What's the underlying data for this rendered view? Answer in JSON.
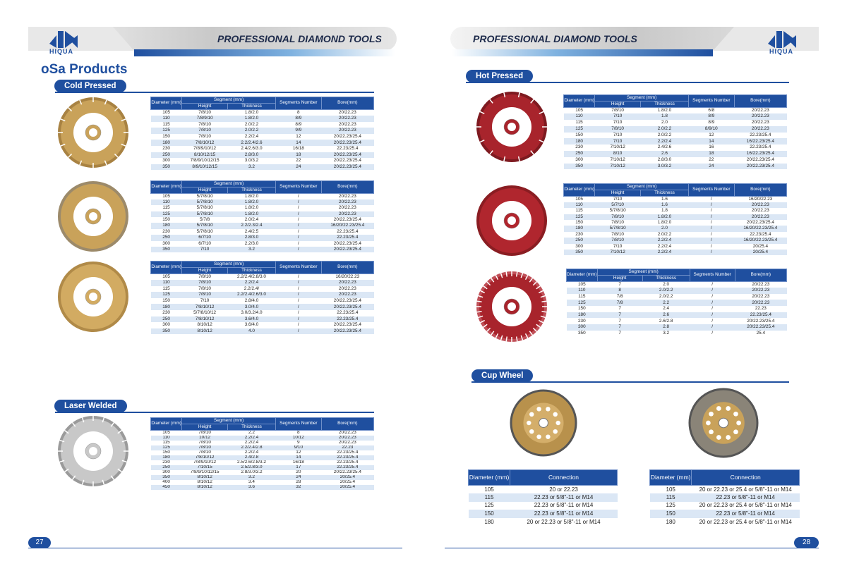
{
  "left_page": {
    "header_title": "PROFESSIONAL DIAMOND TOOLS",
    "logo_text": "HIQUA",
    "heading": "oSa Products",
    "cold_pressed": {
      "label": "Cold Pressed",
      "tables": [
        {
          "header": {
            "diameter": "Diameter (mm)",
            "segment": "Segment (mm)",
            "height": "Height",
            "thickness": "Thickness",
            "segments": "Segments Number",
            "bore": "Bore(mm)"
          },
          "rows": [
            [
              "105",
              "7/8/10",
              "1.8/2.0",
              "8",
              "20/22.23"
            ],
            [
              "110",
              "7/8/9/10",
              "1.8/2.0",
              "8/9",
              "20/22.23"
            ],
            [
              "115",
              "7/8/10",
              "2.0/2.2",
              "8/9",
              "20/22.23"
            ],
            [
              "125",
              "7/8/10",
              "2.0/2.2",
              "9/9",
              "20/22.23"
            ],
            [
              "150",
              "7/8/10",
              "2.2/2.4",
              "12",
              "20/22.23/25.4"
            ],
            [
              "180",
              "7/8/10/12",
              "2.2/2.4/2.6",
              "14",
              "20/22.23/25.4"
            ],
            [
              "230",
              "7/8/9/10/12",
              "2.4/2.6/3.0",
              "16/18",
              "22.23/25.4"
            ],
            [
              "250",
              "8/10/12/15",
              "2.8/3.0",
              "18",
              "20/22.23/25.4"
            ],
            [
              "300",
              "7/8/9/10/12/15",
              "3.0/3.2",
              "22",
              "20/22.23/25.4"
            ],
            [
              "350",
              "8/9/10/12/15",
              "3.2",
              "24",
              "20/22.23/25.4"
            ]
          ]
        },
        {
          "header": {
            "diameter": "Diameter (mm)",
            "segment": "Segment (mm)",
            "height": "Height",
            "thickness": "Thickness",
            "segments": "Segments Number",
            "bore": "Bore(mm)"
          },
          "rows": [
            [
              "105",
              "5/7/8/10",
              "1.8/2.0",
              "/",
              "20/22.23"
            ],
            [
              "110",
              "5/7/8/10",
              "1.8/2.0",
              "/",
              "20/22.23"
            ],
            [
              "115",
              "5/7/8/10",
              "1.8/2.0",
              "/",
              "20/22.23"
            ],
            [
              "125",
              "5/7/8/10",
              "1.8/2.0",
              "/",
              "20/22.23"
            ],
            [
              "150",
              "5/7/8",
              "2.0/2.4",
              "/",
              "20/22.23/25.4"
            ],
            [
              "180",
              "5/7/8/10",
              "2.2/2.3/2.4",
              "/",
              "16/20/22.23/25.4"
            ],
            [
              "230",
              "5/7/8/10",
              "2.4/2.5",
              "/",
              "22.23/25.4"
            ],
            [
              "250",
              "6/7/10",
              "2.8/3.0",
              "/",
              "22.23/25.4"
            ],
            [
              "300",
              "6/7/10",
              "2.2/3.0",
              "/",
              "20/22.23/25.4"
            ],
            [
              "350",
              "7/10",
              "3.2",
              "/",
              "20/22.23/25.4"
            ]
          ]
        },
        {
          "header": {
            "diameter": "Diameter (mm)",
            "segment": "Segment (mm)",
            "height": "Height",
            "thickness": "Thickness",
            "segments": "Segments Number",
            "bore": "Bore(mm)"
          },
          "rows": [
            [
              "105",
              "7/8/10",
              "2.2/2.4/2.8/3.0",
              "/",
              "16/20/22.23"
            ],
            [
              "110",
              "7/8/10",
              "2.2/2.4",
              "/",
              "20/22.23"
            ],
            [
              "115",
              "7/8/10",
              "2.2/2.4/",
              "/",
              "20/22.23"
            ],
            [
              "125",
              "7/8/10",
              "2.2/2.4/2.6/3.0",
              "/",
              "20/22.23"
            ],
            [
              "150",
              "7/10",
              "2.8/4.0",
              "/",
              "20/22.23/25.4"
            ],
            [
              "180",
              "7/8/10/12",
              "3.0/4.0",
              "/",
              "20/22.23/25.4"
            ],
            [
              "230",
              "5/7/8/10/12",
              "3.0/3.2/4.0",
              "/",
              "22.23/25.4"
            ],
            [
              "250",
              "7/8/10/12",
              "3.6/4.0",
              "/",
              "22.23/25.4"
            ],
            [
              "300",
              "8/10/12",
              "3.6/4.0",
              "/",
              "20/22.23/25.4"
            ],
            [
              "350",
              "8/10/12",
              "4.0",
              "/",
              "20/22.23/25.4"
            ]
          ]
        }
      ]
    },
    "laser_welded": {
      "label": "Laser Welded",
      "tables": [
        {
          "header": {
            "diameter": "Diameter (mm)",
            "segment": "Segment (mm)",
            "height": "Height",
            "thickness": "Thickness",
            "segments": "Segments Number",
            "bore": "Bore(mm)"
          },
          "rows": [
            [
              "105",
              "7/8/10",
              "2.2",
              "8",
              "20/22.23"
            ],
            [
              "110",
              "10/12",
              "2.2/2.4",
              "10/12",
              "20/22.23"
            ],
            [
              "115",
              "7/8/10",
              "2.2/2.4",
              "9",
              "20/22.23"
            ],
            [
              "125",
              "7/8/10",
              "2.2/2.4/2.8",
              "9/10",
              "22.23"
            ],
            [
              "150",
              "7/8/10",
              "2.2/2.4",
              "12",
              "22.23/25.4"
            ],
            [
              "180",
              "7/8/10/12",
              "2.4/2.8",
              "14",
              "22.23/25.4"
            ],
            [
              "230",
              "7/8/9/10/12",
              "2.5/2.6/2.8/3.2",
              "16/18",
              "22.23/25.4"
            ],
            [
              "250",
              "7/10/15",
              "2.5/2.8/3.0",
              "17",
              "22.23/25.4"
            ],
            [
              "300",
              "7/8/9/10/12/15",
              "2.8/3.0/3.2",
              "20",
              "20/22.23/25.4"
            ],
            [
              "350",
              "8/10/12",
              "3.2",
              "24",
              "20/25.4"
            ],
            [
              "400",
              "8/10/12",
              "3.4",
              "28",
              "20/25.4"
            ],
            [
              "450",
              "8/10/12",
              "3.6",
              "32",
              "20/25.4"
            ]
          ]
        }
      ]
    },
    "page_number": "27"
  },
  "right_page": {
    "header_title": "PROFESSIONAL DIAMOND TOOLS",
    "logo_text": "HIQUA",
    "hot_pressed": {
      "label": "Hot Pressed",
      "tables": [
        {
          "header": {
            "diameter": "Diameter (mm)",
            "segment": "Segment (mm)",
            "height": "Height",
            "thickness": "Thickness",
            "segments": "Segments Number",
            "bore": "Bore(mm)"
          },
          "rows": [
            [
              "105",
              "7/8/10",
              "1.8/2.0",
              "6/8",
              "20/22.23"
            ],
            [
              "110",
              "7/10",
              "1.8",
              "8/9",
              "20/22.23"
            ],
            [
              "115",
              "7/10",
              "2.0",
              "8/9",
              "20/22.23"
            ],
            [
              "125",
              "7/8/10",
              "2.0/2.2",
              "8/9/10",
              "20/22.23"
            ],
            [
              "150",
              "7/10",
              "2.0/2.2",
              "12",
              "22.23/25.4"
            ],
            [
              "180",
              "7/10",
              "2.2/2.4",
              "14",
              "16/22.23/25.4"
            ],
            [
              "230",
              "7/10/12",
              "2.4/2.6",
              "16",
              "22.23/25.4"
            ],
            [
              "250",
              "8/10",
              "2.6",
              "18",
              "16/22.23/25.4"
            ],
            [
              "300",
              "7/10/12",
              "2.8/3.0",
              "22",
              "20/22.23/25.4"
            ],
            [
              "350",
              "7/10/12",
              "3.0/3.2",
              "24",
              "20/22.23/25.4"
            ]
          ]
        },
        {
          "header": {
            "diameter": "Diameter (mm)",
            "segment": "Segment (mm)",
            "height": "Height",
            "thickness": "Thickness",
            "segments": "Segments Number",
            "bore": "Bore(mm)"
          },
          "rows": [
            [
              "105",
              "7/10",
              "1.6",
              "/",
              "16/20/22.23"
            ],
            [
              "110",
              "5/7/10",
              "1.6",
              "/",
              "20/22.23"
            ],
            [
              "115",
              "5/7/8/10",
              "1.8",
              "/",
              "20/22.23"
            ],
            [
              "125",
              "7/8/10",
              "1.8/2.0",
              "/",
              "20/22.23"
            ],
            [
              "150",
              "7/8/10",
              "1.8/2.0",
              "/",
              "20/22.23/25.4"
            ],
            [
              "180",
              "5/7/8/10",
              "2.0",
              "/",
              "16/20/22.23/25.4"
            ],
            [
              "230",
              "7/8/10",
              "2.0/2.2",
              "/",
              "22.23/25.4"
            ],
            [
              "250",
              "7/8/10",
              "2.2/2.4",
              "/",
              "16/20/22.23/25.4"
            ],
            [
              "300",
              "7/10",
              "2.2/2.4",
              "/",
              "20/25.4"
            ],
            [
              "350",
              "7/10/12",
              "2.2/2.4",
              "/",
              "20/25.4"
            ]
          ]
        },
        {
          "header": {
            "diameter": "Diameter (mm)",
            "segment": "Segment (mm)",
            "height": "Height",
            "thickness": "Thickness",
            "segments": "Segments Number",
            "bore": "Bore(mm)"
          },
          "rows": [
            [
              "105",
              "7",
              "2.0",
              "/",
              "20/22.23"
            ],
            [
              "110",
              "8",
              "2.0/2.2",
              "/",
              "20/22.23"
            ],
            [
              "115",
              "7/8",
              "2.0/2.2",
              "/",
              "20/22.23"
            ],
            [
              "125",
              "7/8",
              "2.2",
              "/",
              "20/22.23"
            ],
            [
              "150",
              "7",
              "2.4",
              "/",
              "22.23"
            ],
            [
              "180",
              "7",
              "2.6",
              "/",
              "22.23/25.4"
            ],
            [
              "230",
              "7",
              "2.6/2.8",
              "/",
              "20/22.23/25.4"
            ],
            [
              "300",
              "7",
              "2.8",
              "/",
              "20/22.23/25.4"
            ],
            [
              "350",
              "7",
              "3.2",
              "/",
              "25.4"
            ]
          ]
        }
      ]
    },
    "cup_wheel": {
      "label": "Cup Wheel",
      "tables": [
        {
          "header": {
            "diameter": "Diameter (mm)",
            "connection": "Connection"
          },
          "rows": [
            [
              "105",
              "20 or 22.23"
            ],
            [
              "115",
              "22.23 or 5/8\"-11 or M14"
            ],
            [
              "125",
              "22.23 or 5/8\"-11 or M14"
            ],
            [
              "150",
              "22.23 or 5/8\"-11 or M14"
            ],
            [
              "180",
              "20 or 22.23 or 5/8\"-11 or M14"
            ]
          ]
        },
        {
          "header": {
            "diameter": "Diameter (mm)",
            "connection": "Connection"
          },
          "rows": [
            [
              "105",
              "20 or 22.23 or 25.4 or 5/8\"-11 or M14"
            ],
            [
              "115",
              "22.23 or 5/8\"-11 or M14"
            ],
            [
              "125",
              "20 or 22.23 or 25.4 or 5/8\"-11 or M14"
            ],
            [
              "150",
              "22.23 or 5/8\"-11 or M14"
            ],
            [
              "180",
              "20 or 22.23 or 25.4 or 5/8\"-11 or M14"
            ]
          ]
        }
      ]
    },
    "page_number": "28"
  }
}
